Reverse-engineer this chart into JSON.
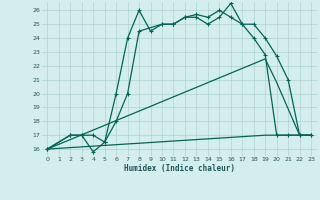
{
  "bg_color": "#d4eeee",
  "grid_color": "#b0d0d0",
  "line_color": "#006655",
  "xlabel": "Humidex (Indice chaleur)",
  "xlim": [
    -0.5,
    23.5
  ],
  "ylim": [
    15.5,
    26.6
  ],
  "yticks": [
    16,
    17,
    18,
    19,
    20,
    21,
    22,
    23,
    24,
    25,
    26
  ],
  "xticks": [
    0,
    1,
    2,
    3,
    4,
    5,
    6,
    7,
    8,
    9,
    10,
    11,
    12,
    13,
    14,
    15,
    16,
    17,
    18,
    19,
    20,
    21,
    22,
    23
  ],
  "line1_x": [
    0,
    2,
    3,
    4,
    5,
    6,
    7,
    8,
    9,
    10,
    11,
    12,
    13,
    14,
    15,
    16,
    17,
    18,
    19,
    20,
    21,
    22,
    23
  ],
  "line1_y": [
    16,
    17,
    17,
    17,
    16.5,
    20,
    24,
    26,
    24.5,
    25,
    25,
    25.5,
    25.7,
    25.5,
    26,
    25.5,
    25,
    24,
    22.8,
    17,
    17,
    17,
    17
  ],
  "line2_x": [
    0,
    2,
    3,
    4,
    5,
    6,
    7,
    8,
    10,
    11,
    12,
    13,
    14,
    15,
    16,
    17,
    18,
    19,
    20,
    21,
    22,
    23
  ],
  "line2_y": [
    16,
    17,
    17,
    15.8,
    16.5,
    18,
    20,
    24.5,
    25,
    25,
    25.5,
    25.5,
    25,
    25.5,
    26.5,
    25,
    25,
    24,
    22.7,
    21,
    17,
    17
  ],
  "line3_x": [
    0,
    19,
    20,
    22,
    23
  ],
  "line3_y": [
    16,
    22.5,
    20.8,
    17,
    17
  ],
  "line4_x": [
    0,
    19,
    22,
    23
  ],
  "line4_y": [
    16,
    17,
    17,
    17
  ],
  "marker": "+",
  "markersize": 3.0,
  "linewidth": 0.9
}
